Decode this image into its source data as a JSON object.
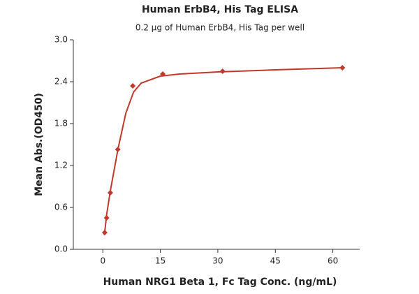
{
  "chart_data": {
    "type": "scatter",
    "title": "Human ErbB4, His Tag ELISA",
    "subtitle": "0.2 μg of Human ErbB4, His Tag per well",
    "x_label": "Human NRG1 Beta 1, Fc Tag Conc. (ng/mL)",
    "y_label": "Mean Abs.(OD450)",
    "x": [
      0.49,
      0.98,
      1.95,
      3.91,
      7.81,
      15.63,
      31.25,
      62.5
    ],
    "values": [
      0.24,
      0.45,
      0.81,
      1.43,
      2.34,
      2.51,
      2.55,
      2.6
    ],
    "color": "#c0392b",
    "fit": {
      "x": [
        0.4,
        1,
        2,
        4,
        6,
        8,
        10,
        15,
        20,
        30,
        45,
        62.5
      ],
      "values": [
        0.2,
        0.5,
        0.85,
        1.45,
        1.95,
        2.25,
        2.38,
        2.48,
        2.51,
        2.54,
        2.57,
        2.6
      ]
    },
    "xlim": [
      -7.7,
      67
    ],
    "xticks": [
      0,
      15,
      30,
      45,
      60
    ],
    "ylim": [
      0,
      3
    ],
    "yticks": [
      {
        "value": 0,
        "label": "0.0"
      },
      0.6,
      1.2,
      1.8,
      2.4,
      {
        "value": 3,
        "label": "3.0"
      }
    ],
    "grid": false
  }
}
